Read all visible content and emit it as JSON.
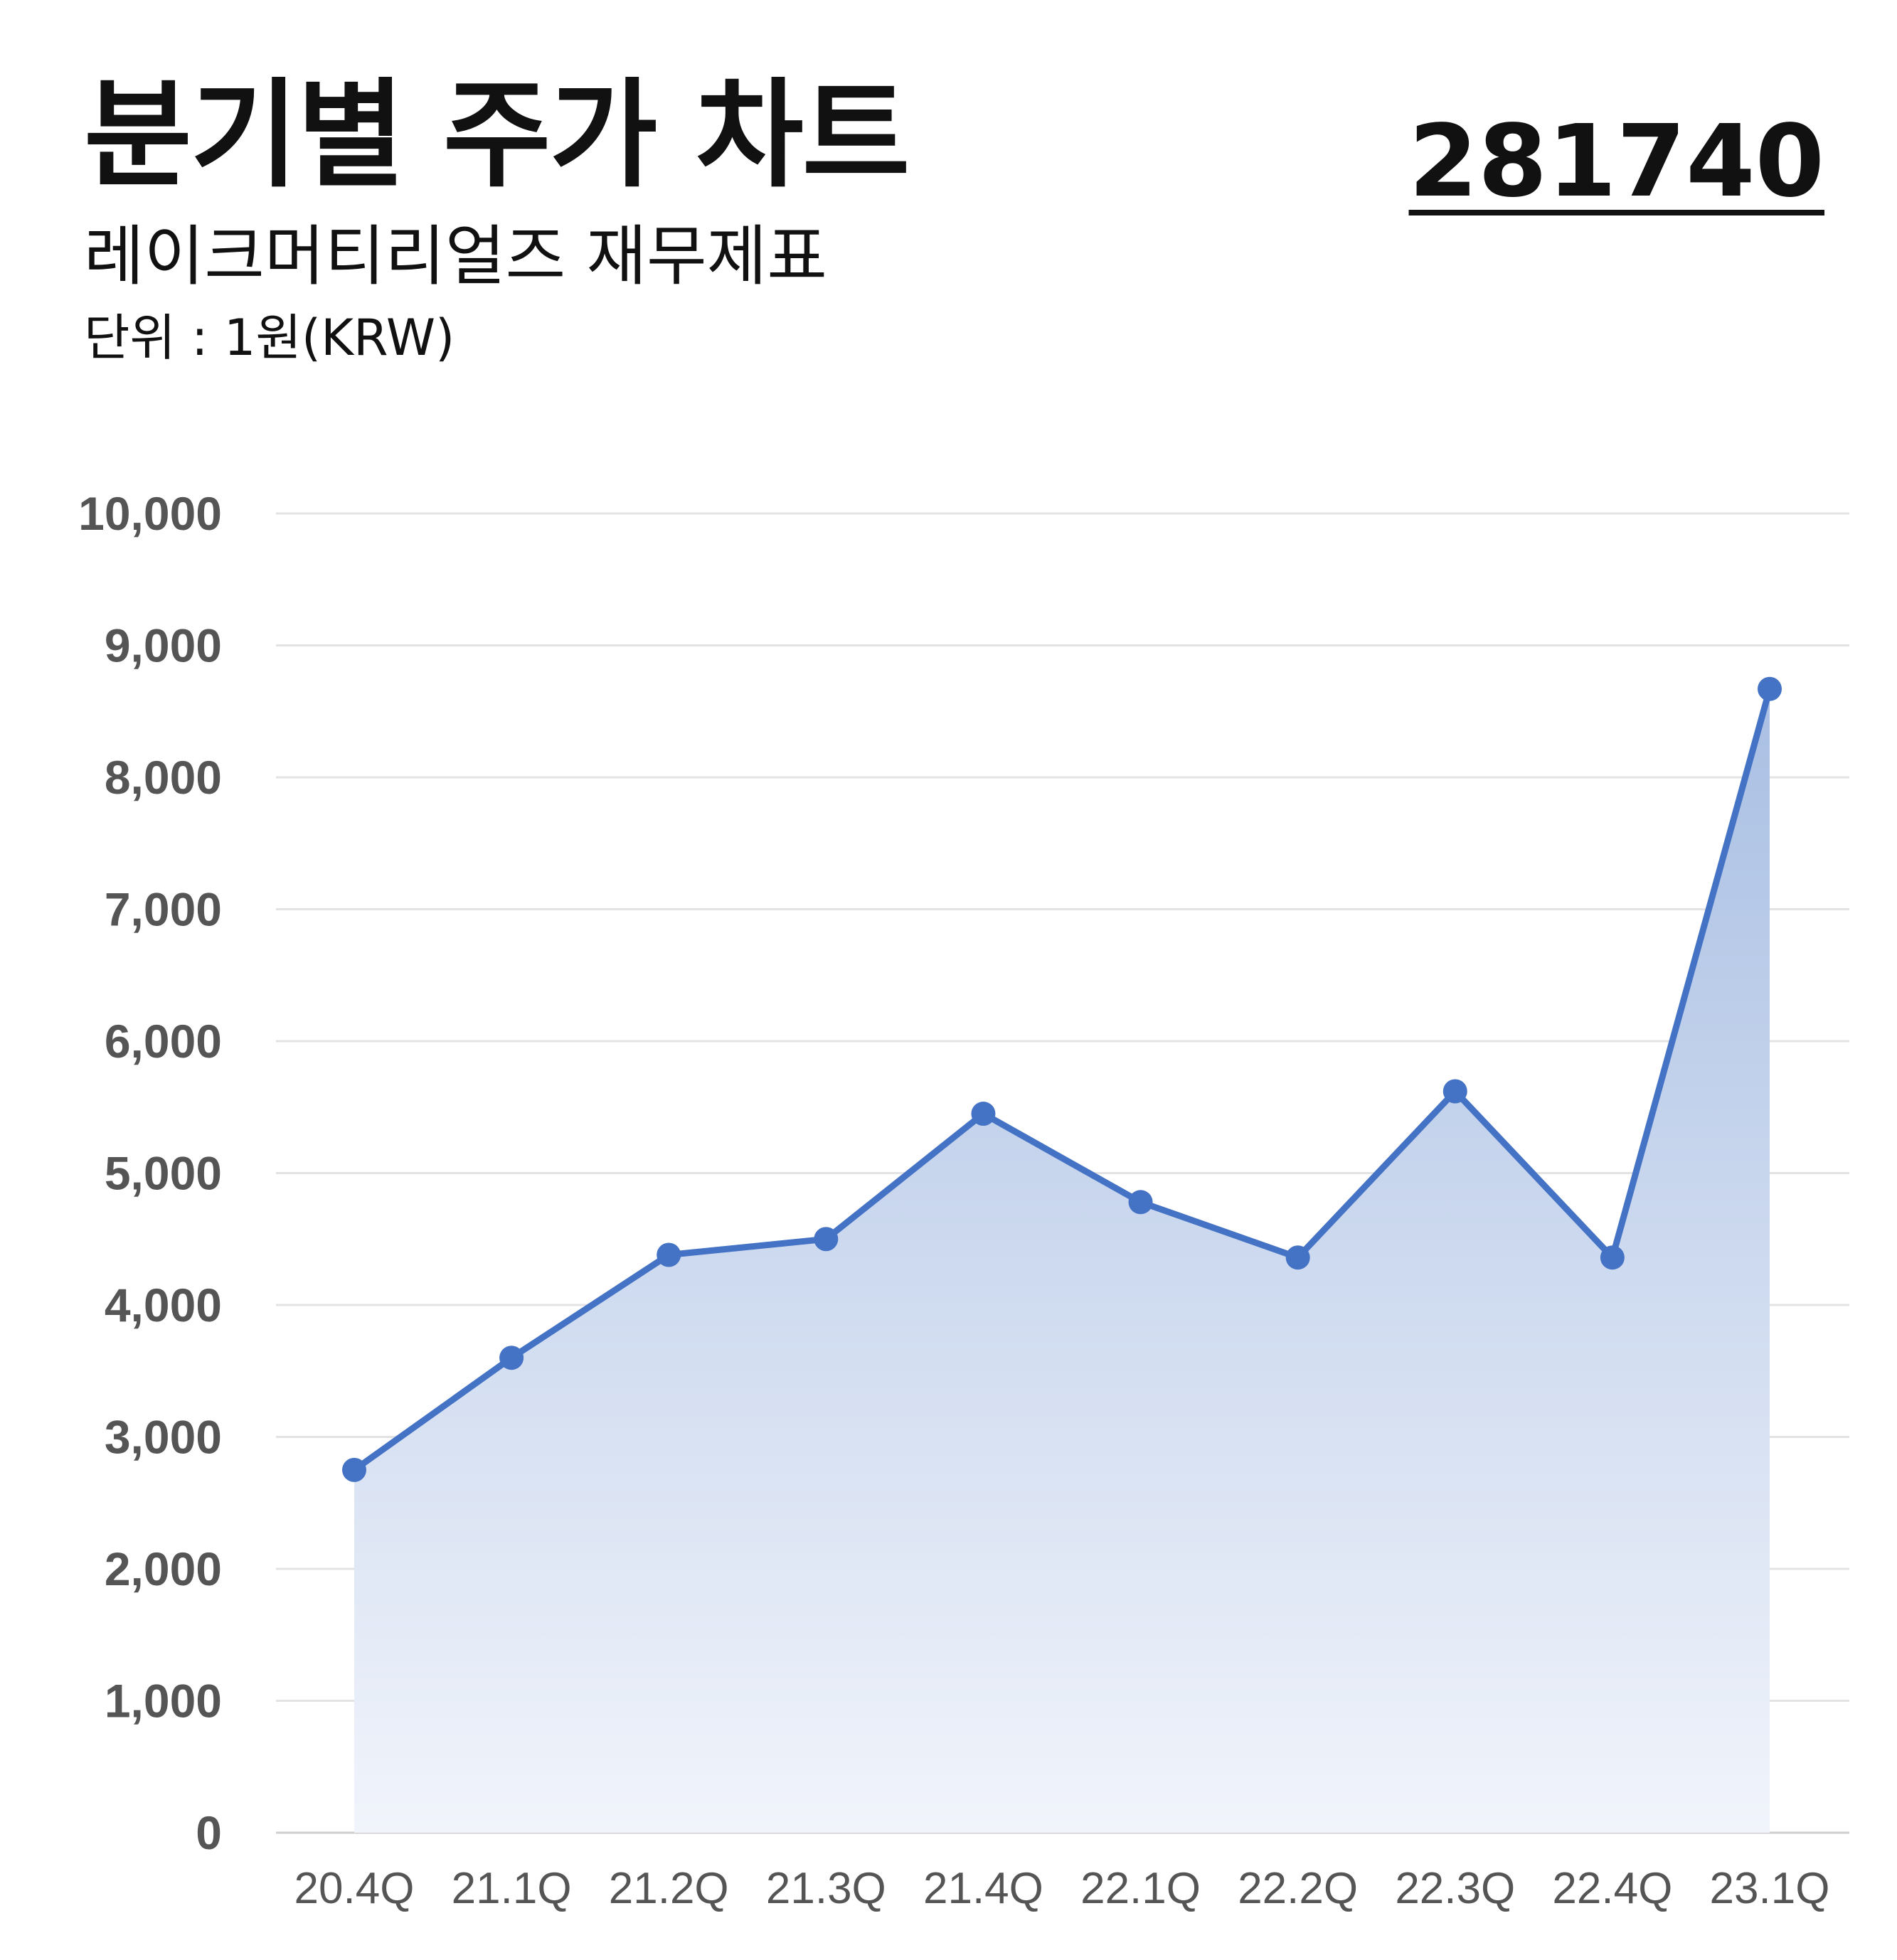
{
  "header": {
    "title": "분기별 주가 차트",
    "subtitle": "레이크머티리얼즈 재무제표",
    "unit": "단위 : 1원(KRW)",
    "code": "281740"
  },
  "colors": {
    "line": "#4472C4",
    "fill_top": "#A9BFE3",
    "fill_bottom": "#F1F4FB",
    "grid": "#E3E3E3",
    "tick_text": "#555555"
  },
  "chart_data": {
    "type": "area",
    "categories": [
      "20.4Q",
      "21.1Q",
      "21.2Q",
      "21.3Q",
      "21.4Q",
      "22.1Q",
      "22.2Q",
      "22.3Q",
      "22.4Q",
      "23.1Q"
    ],
    "series": [
      {
        "values": [
          2750,
          3600,
          4380,
          4500,
          5450,
          4780,
          4360,
          5620,
          4360,
          8670
        ]
      }
    ],
    "yticks": [
      "0",
      "1,000",
      "2,000",
      "3,000",
      "4,000",
      "5,000",
      "6,000",
      "7,000",
      "8,000",
      "9,000",
      "10,000"
    ],
    "ylim": [
      0,
      10000
    ],
    "ystep": 1000,
    "grid": true,
    "markers": true,
    "xlabel": "",
    "ylabel": ""
  }
}
